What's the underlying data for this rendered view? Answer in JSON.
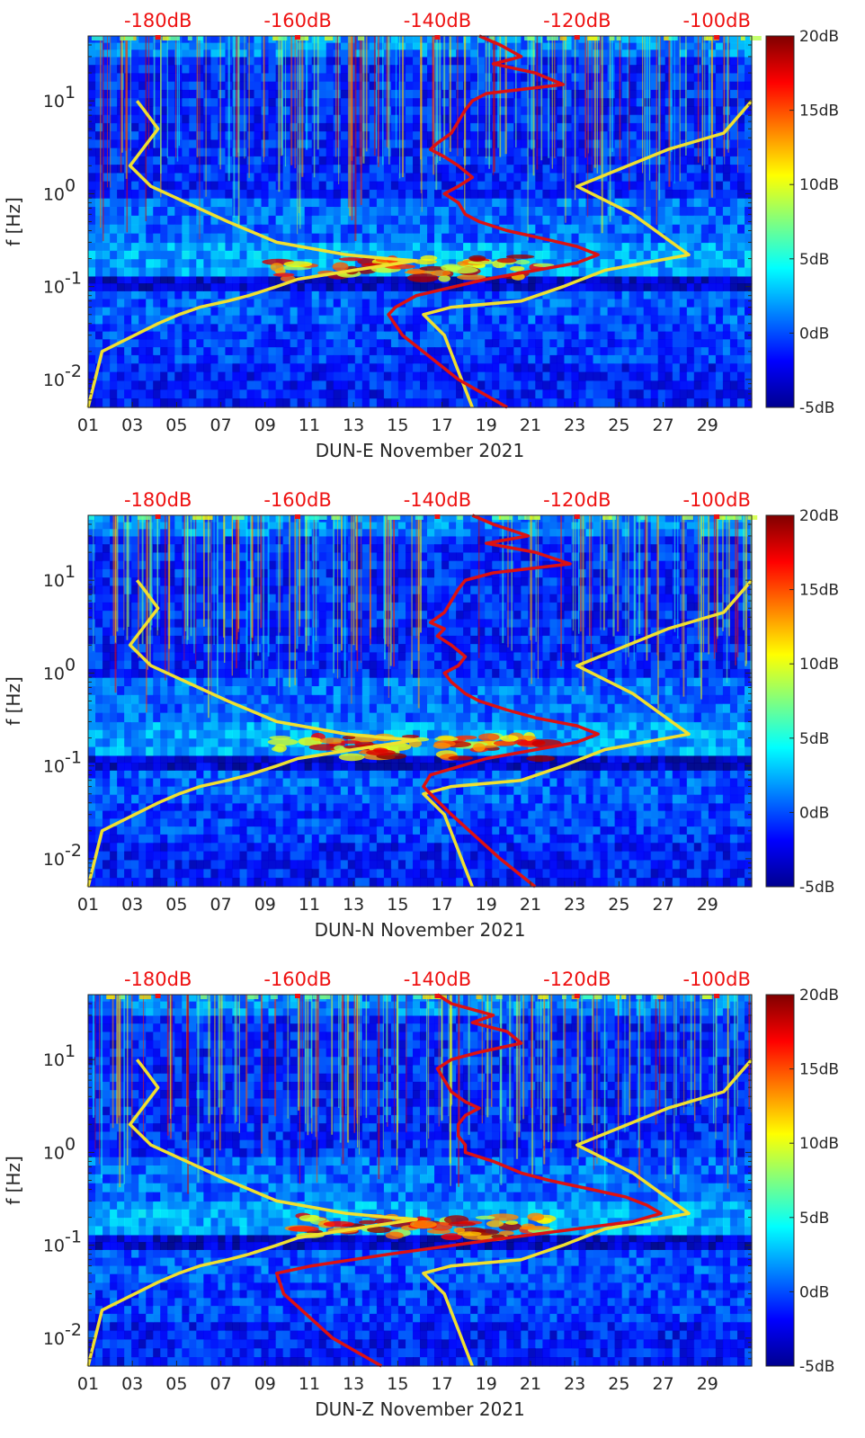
{
  "chart_data": [
    {
      "type": "heatmap",
      "title": "DUN-E November 2021",
      "xlabel": "DUN-E November 2021",
      "ylabel": "f [Hz]",
      "x_ticks": [
        "01",
        "03",
        "05",
        "07",
        "09",
        "11",
        "13",
        "15",
        "17",
        "19",
        "21",
        "23",
        "25",
        "27",
        "29"
      ],
      "x_range_days": [
        1,
        31
      ],
      "y_scale": "log",
      "y_range_hz": [
        0.005,
        50
      ],
      "y_ticks": [
        {
          "base": "10",
          "exp": "1",
          "value": 10
        },
        {
          "base": "10",
          "exp": "0",
          "value": 1
        },
        {
          "base": "10",
          "exp": "-1",
          "value": 0.1
        },
        {
          "base": "10",
          "exp": "-2",
          "value": 0.01
        }
      ],
      "top_axis_labels": [
        "-180dB",
        "-160dB",
        "-140dB",
        "-120dB",
        "-100dB"
      ],
      "top_axis_range_db": [
        -190,
        -95
      ],
      "colorbar_labels": [
        "20dB",
        "15dB",
        "10dB",
        "5dB",
        "0dB",
        "-5dB"
      ],
      "colorbar_range_db": [
        -5,
        20
      ],
      "overlays": [
        {
          "name": "noise model low",
          "color": "#f0e030",
          "db": [
            -183,
            -182,
            -180,
            -184,
            -181,
            -170,
            -163,
            -153,
            -147,
            -143,
            -152,
            -160,
            -163,
            -167,
            -170,
            -174,
            -177,
            -180,
            -188,
            -190
          ],
          "f_hz": [
            10,
            8,
            5,
            2,
            1.2,
            0.5,
            0.3,
            0.22,
            0.2,
            0.19,
            0.15,
            0.12,
            0.1,
            0.08,
            0.07,
            0.06,
            0.05,
            0.04,
            0.02,
            0.005
          ]
        },
        {
          "name": "noise model high",
          "color": "#f0e030",
          "db": [
            -95,
            -99,
            -107,
            -120,
            -112,
            -104,
            -116,
            -122,
            -128,
            -138,
            -142,
            -139,
            -135
          ],
          "f_hz": [
            10,
            4.5,
            3,
            1.2,
            0.6,
            0.22,
            0.15,
            0.1,
            0.07,
            0.06,
            0.05,
            0.03,
            0.005
          ]
        },
        {
          "name": "median PSD",
          "color": "#dd1111",
          "db": [
            -134,
            -131,
            -128,
            -132,
            -126,
            -122,
            -133,
            -135,
            -136,
            -137,
            -138,
            -140,
            -141,
            -139,
            -137,
            -135,
            -137,
            -139,
            -137,
            -136,
            -134,
            -130,
            -125,
            -120,
            -117,
            -120,
            -133,
            -143,
            -146,
            -147,
            -145,
            -137,
            -130
          ],
          "f_hz": [
            50,
            40,
            30,
            25,
            20,
            15,
            12,
            10,
            8,
            6,
            4.5,
            3.5,
            3,
            2.5,
            2,
            1.5,
            1.2,
            1,
            0.8,
            0.6,
            0.5,
            0.4,
            0.33,
            0.27,
            0.22,
            0.18,
            0.12,
            0.08,
            0.06,
            0.05,
            0.03,
            0.01,
            0.005
          ]
        }
      ]
    },
    {
      "type": "heatmap",
      "title": "DUN-N November 2021",
      "xlabel": "DUN-N November 2021",
      "ylabel": "f [Hz]",
      "x_ticks": [
        "01",
        "03",
        "05",
        "07",
        "09",
        "11",
        "13",
        "15",
        "17",
        "19",
        "21",
        "23",
        "25",
        "27",
        "29"
      ],
      "x_range_days": [
        1,
        31
      ],
      "y_scale": "log",
      "y_range_hz": [
        0.005,
        50
      ],
      "y_ticks": [
        {
          "base": "10",
          "exp": "1",
          "value": 10
        },
        {
          "base": "10",
          "exp": "0",
          "value": 1
        },
        {
          "base": "10",
          "exp": "-1",
          "value": 0.1
        },
        {
          "base": "10",
          "exp": "-2",
          "value": 0.01
        }
      ],
      "top_axis_labels": [
        "-180dB",
        "-160dB",
        "-140dB",
        "-120dB",
        "-100dB"
      ],
      "top_axis_range_db": [
        -190,
        -95
      ],
      "colorbar_labels": [
        "20dB",
        "15dB",
        "10dB",
        "5dB",
        "0dB",
        "-5dB"
      ],
      "colorbar_range_db": [
        -5,
        20
      ],
      "overlays": [
        {
          "name": "noise model low",
          "color": "#f0e030",
          "db": [
            -183,
            -182,
            -180,
            -184,
            -181,
            -170,
            -163,
            -153,
            -147,
            -143,
            -152,
            -160,
            -163,
            -167,
            -170,
            -174,
            -177,
            -180,
            -188,
            -190
          ],
          "f_hz": [
            10,
            8,
            5,
            2,
            1.2,
            0.5,
            0.3,
            0.22,
            0.2,
            0.19,
            0.15,
            0.12,
            0.1,
            0.08,
            0.07,
            0.06,
            0.05,
            0.04,
            0.02,
            0.005
          ]
        },
        {
          "name": "noise model high",
          "color": "#f0e030",
          "db": [
            -95,
            -99,
            -107,
            -120,
            -112,
            -104,
            -116,
            -122,
            -128,
            -138,
            -142,
            -139,
            -135
          ],
          "f_hz": [
            10,
            4.5,
            3,
            1.2,
            0.6,
            0.22,
            0.15,
            0.1,
            0.07,
            0.06,
            0.05,
            0.03,
            0.005
          ]
        },
        {
          "name": "median PSD",
          "color": "#dd1111",
          "db": [
            -135,
            -132,
            -127,
            -133,
            -126,
            -121,
            -132,
            -136,
            -137,
            -138,
            -139,
            -141,
            -139,
            -140,
            -138,
            -136,
            -137,
            -139,
            -138,
            -136,
            -134,
            -130,
            -126,
            -120,
            -117,
            -120,
            -133,
            -141,
            -142,
            -141,
            -138,
            -131,
            -126
          ],
          "f_hz": [
            50,
            40,
            30,
            25,
            20,
            15,
            12,
            10,
            8,
            6,
            4.5,
            3.5,
            3,
            2.5,
            2,
            1.5,
            1.2,
            1,
            0.8,
            0.6,
            0.5,
            0.4,
            0.33,
            0.27,
            0.22,
            0.18,
            0.12,
            0.08,
            0.06,
            0.05,
            0.03,
            0.01,
            0.005
          ]
        }
      ]
    },
    {
      "type": "heatmap",
      "title": "DUN-Z November 2021",
      "xlabel": "DUN-Z November 2021",
      "ylabel": "f [Hz]",
      "x_ticks": [
        "01",
        "03",
        "05",
        "07",
        "09",
        "11",
        "13",
        "15",
        "17",
        "19",
        "21",
        "23",
        "25",
        "27",
        "29"
      ],
      "x_range_days": [
        1,
        31
      ],
      "y_scale": "log",
      "y_range_hz": [
        0.005,
        50
      ],
      "y_ticks": [
        {
          "base": "10",
          "exp": "1",
          "value": 10
        },
        {
          "base": "10",
          "exp": "0",
          "value": 1
        },
        {
          "base": "10",
          "exp": "-1",
          "value": 0.1
        },
        {
          "base": "10",
          "exp": "-2",
          "value": 0.01
        }
      ],
      "top_axis_labels": [
        "-180dB",
        "-160dB",
        "-140dB",
        "-120dB",
        "-100dB"
      ],
      "top_axis_range_db": [
        -190,
        -95
      ],
      "colorbar_labels": [
        "20dB",
        "15dB",
        "10dB",
        "5dB",
        "0dB",
        "-5dB"
      ],
      "colorbar_range_db": [
        -5,
        20
      ],
      "overlays": [
        {
          "name": "noise model low",
          "color": "#f0e030",
          "db": [
            -183,
            -182,
            -180,
            -184,
            -181,
            -170,
            -163,
            -153,
            -147,
            -143,
            -152,
            -160,
            -163,
            -167,
            -170,
            -174,
            -177,
            -180,
            -188,
            -190
          ],
          "f_hz": [
            10,
            8,
            5,
            2,
            1.2,
            0.5,
            0.3,
            0.22,
            0.2,
            0.19,
            0.15,
            0.12,
            0.1,
            0.08,
            0.07,
            0.06,
            0.05,
            0.04,
            0.02,
            0.005
          ]
        },
        {
          "name": "noise model high",
          "color": "#f0e030",
          "db": [
            -95,
            -99,
            -107,
            -120,
            -112,
            -104,
            -116,
            -122,
            -128,
            -138,
            -142,
            -139,
            -135
          ],
          "f_hz": [
            10,
            4.5,
            3,
            1.2,
            0.6,
            0.22,
            0.15,
            0.1,
            0.07,
            0.06,
            0.05,
            0.03,
            0.005
          ]
        },
        {
          "name": "median PSD",
          "color": "#dd1111",
          "db": [
            -140,
            -138,
            -132,
            -135,
            -130,
            -128,
            -134,
            -138,
            -140,
            -139,
            -138,
            -136,
            -134,
            -136,
            -137,
            -137,
            -136,
            -136,
            -132,
            -128,
            -124,
            -118,
            -113,
            -110,
            -108,
            -112,
            -130,
            -147,
            -158,
            -163,
            -162,
            -155,
            -148
          ],
          "f_hz": [
            50,
            40,
            30,
            25,
            20,
            15,
            12,
            10,
            8,
            6,
            4.5,
            3.5,
            3,
            2.5,
            2,
            1.5,
            1.2,
            1,
            0.8,
            0.6,
            0.5,
            0.4,
            0.33,
            0.27,
            0.22,
            0.18,
            0.12,
            0.08,
            0.06,
            0.05,
            0.03,
            0.01,
            0.005
          ]
        }
      ]
    }
  ]
}
